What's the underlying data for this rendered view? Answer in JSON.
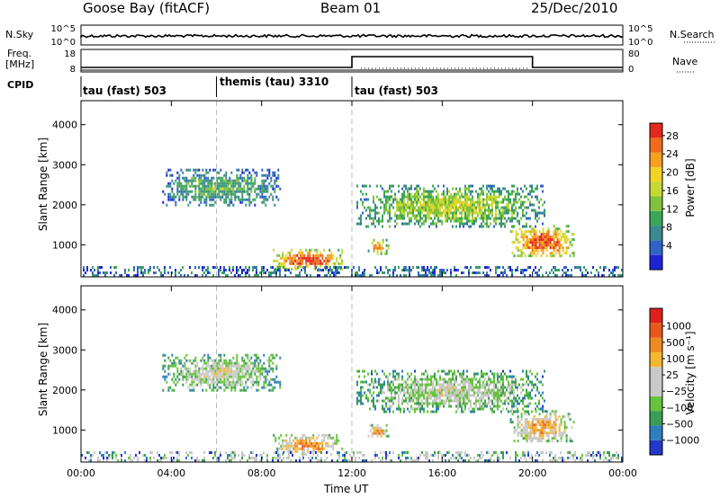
{
  "header": {
    "station": "Goose Bay (fitACF)",
    "beam": "Beam 01",
    "date": "25/Dec/2010"
  },
  "top_panels": {
    "nsky_label": "N.Sky",
    "nsearch_label": "N.Search",
    "freq_label_1": "Freq.",
    "freq_label_2": "[MHz]",
    "nave_label": "Nave",
    "cpid_label": "CPID",
    "nsky_ticks_left": [
      "10^5",
      "10^0"
    ],
    "nsky_ticks_right": [
      "10^5",
      "10^0"
    ],
    "freq_ticks_left": [
      "18",
      "8"
    ],
    "nave_ticks_right": [
      "80",
      "0"
    ]
  },
  "cpid_segments": [
    {
      "label": "tau (fast) 503",
      "start_hour": 0
    },
    {
      "label": "themis (tau) 3310",
      "start_hour": 6
    },
    {
      "label": "tau (fast) 503",
      "start_hour": 12
    }
  ],
  "chart_data": [
    {
      "type": "heatmap",
      "name": "power",
      "xlabel": "",
      "ylabel": "Slant Range [km]",
      "xlim": [
        0,
        24
      ],
      "ylim": [
        200,
        4600
      ],
      "y_ticks": [
        "1000",
        "2000",
        "3000",
        "4000"
      ],
      "colorbar": {
        "label": "Power [dB]",
        "ticks": [
          "4",
          "8",
          "12",
          "16",
          "20",
          "24",
          "28"
        ],
        "colors": [
          "#1d24d8",
          "#2f63c6",
          "#3b8a8f",
          "#3aa65a",
          "#7fc33c",
          "#c8d833",
          "#f1d328",
          "#f5a020",
          "#ef6a1b",
          "#e2281a"
        ]
      },
      "regions": [
        {
          "t_start": 3.6,
          "t_end": 8.8,
          "range_low": 2000,
          "range_high": 2900,
          "level": 0.35
        },
        {
          "t_start": 8.5,
          "t_end": 11.6,
          "range_low": 400,
          "range_high": 900,
          "level": 0.9
        },
        {
          "t_start": 12.7,
          "t_end": 13.6,
          "range_low": 800,
          "range_high": 1150,
          "level": 0.75
        },
        {
          "t_start": 12.2,
          "t_end": 20.5,
          "range_low": 1450,
          "range_high": 2500,
          "level": 0.5
        },
        {
          "t_start": 19.0,
          "t_end": 21.8,
          "range_low": 700,
          "range_high": 1500,
          "level": 0.85
        }
      ]
    },
    {
      "type": "heatmap",
      "name": "velocity",
      "xlabel": "Time UT",
      "ylabel": "Slant Range [km]",
      "xlim": [
        0,
        24
      ],
      "ylim": [
        200,
        4600
      ],
      "x_ticks": [
        "00:00",
        "04:00",
        "08:00",
        "12:00",
        "16:00",
        "20:00",
        "00:00"
      ],
      "y_ticks": [
        "1000",
        "2000",
        "3000",
        "4000"
      ],
      "colorbar": {
        "label": "Velocity [m s⁻¹]",
        "ticks": [
          "1000",
          "500",
          "100",
          "25",
          "−25",
          "−100",
          "−500",
          "−1000"
        ],
        "colors": [
          "#2238c8",
          "#2e7fc0",
          "#3b9c55",
          "#66c43c",
          "#c9c9c9",
          "#c9c9c9",
          "#f5b730",
          "#ef8a20",
          "#e8581c",
          "#e0201a"
        ]
      },
      "regions": [
        {
          "t_start": 3.6,
          "t_end": 8.8,
          "range_low": 2000,
          "range_high": 2900,
          "level": 0.45
        },
        {
          "t_start": 8.5,
          "t_end": 11.6,
          "range_low": 400,
          "range_high": 900,
          "level": 0.7
        },
        {
          "t_start": 12.7,
          "t_end": 13.6,
          "range_low": 800,
          "range_high": 1150,
          "level": 0.7
        },
        {
          "t_start": 12.2,
          "t_end": 20.5,
          "range_low": 1450,
          "range_high": 2500,
          "level": 0.45
        },
        {
          "t_start": 19.0,
          "t_end": 21.8,
          "range_low": 700,
          "range_high": 1500,
          "level": 0.65
        }
      ]
    }
  ]
}
